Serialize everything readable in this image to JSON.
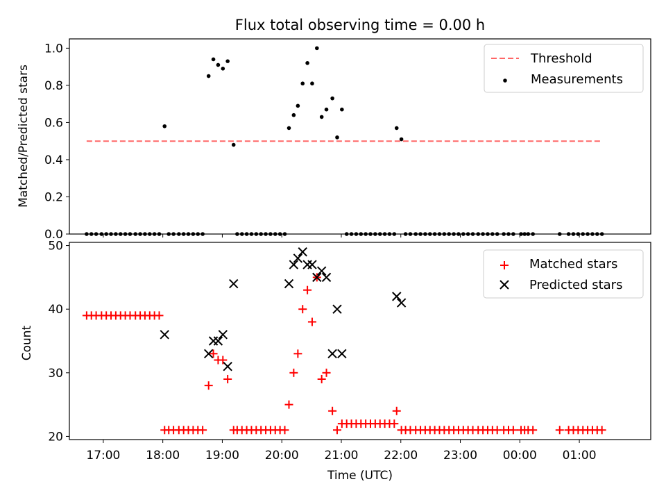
{
  "chart_data": [
    {
      "type": "scatter",
      "title": "Flux total observing time = 0.00 h",
      "xlabel": "",
      "ylabel": "Matched/Predicted stars",
      "xlim": [
        16.43,
        26.2
      ],
      "ylim": [
        0.0,
        1.05
      ],
      "yticks": [
        0.0,
        0.2,
        0.4,
        0.6,
        0.8,
        1.0
      ],
      "ytick_labels": [
        "0.0",
        "0.2",
        "0.4",
        "0.6",
        "0.8",
        "1.0"
      ],
      "legend": {
        "placement": "top-right",
        "entries": [
          {
            "label": "Threshold",
            "style": "dashed-line",
            "color": "#ff6666"
          },
          {
            "label": "Measurements",
            "style": "dot",
            "color": "#000000"
          }
        ]
      },
      "threshold": {
        "name": "Threshold",
        "y": 0.5,
        "x_start": 16.72,
        "x_end": 25.38,
        "color": "#ff6666"
      },
      "series": [
        {
          "name": "Measurements",
          "color": "#000000",
          "points": [
            [
              16.72,
              0
            ],
            [
              16.8,
              0
            ],
            [
              16.88,
              0
            ],
            [
              16.97,
              0
            ],
            [
              17.05,
              0
            ],
            [
              17.13,
              0
            ],
            [
              17.21,
              0
            ],
            [
              17.29,
              0
            ],
            [
              17.37,
              0
            ],
            [
              17.45,
              0
            ],
            [
              17.54,
              0
            ],
            [
              17.62,
              0
            ],
            [
              17.7,
              0
            ],
            [
              17.78,
              0
            ],
            [
              17.86,
              0
            ],
            [
              17.94,
              0
            ],
            [
              18.03,
              0.58
            ],
            [
              18.1,
              0
            ],
            [
              18.18,
              0
            ],
            [
              18.27,
              0
            ],
            [
              18.35,
              0
            ],
            [
              18.43,
              0
            ],
            [
              18.51,
              0
            ],
            [
              18.59,
              0
            ],
            [
              18.67,
              0
            ],
            [
              18.77,
              0.85
            ],
            [
              18.85,
              0.94
            ],
            [
              18.93,
              0.91
            ],
            [
              19.01,
              0.89
            ],
            [
              19.09,
              0.93
            ],
            [
              19.19,
              0.48
            ],
            [
              19.25,
              0
            ],
            [
              19.33,
              0
            ],
            [
              19.41,
              0
            ],
            [
              19.49,
              0
            ],
            [
              19.57,
              0
            ],
            [
              19.65,
              0
            ],
            [
              19.73,
              0
            ],
            [
              19.81,
              0
            ],
            [
              19.89,
              0
            ],
            [
              19.97,
              0
            ],
            [
              20.05,
              0
            ],
            [
              20.12,
              0.57
            ],
            [
              20.2,
              0.64
            ],
            [
              20.27,
              0.69
            ],
            [
              20.35,
              0.81
            ],
            [
              20.43,
              0.92
            ],
            [
              20.51,
              0.81
            ],
            [
              20.59,
              1.0
            ],
            [
              20.67,
              0.63
            ],
            [
              20.75,
              0.67
            ],
            [
              20.85,
              0.73
            ],
            [
              20.93,
              0.52
            ],
            [
              21.01,
              0.67
            ],
            [
              21.09,
              0
            ],
            [
              21.17,
              0
            ],
            [
              21.25,
              0
            ],
            [
              21.33,
              0
            ],
            [
              21.41,
              0
            ],
            [
              21.49,
              0
            ],
            [
              21.57,
              0
            ],
            [
              21.65,
              0
            ],
            [
              21.73,
              0
            ],
            [
              21.81,
              0
            ],
            [
              21.89,
              0
            ],
            [
              21.93,
              0.57
            ],
            [
              22.01,
              0.51
            ],
            [
              22.08,
              0
            ],
            [
              22.16,
              0
            ],
            [
              22.25,
              0
            ],
            [
              22.33,
              0
            ],
            [
              22.41,
              0
            ],
            [
              22.49,
              0
            ],
            [
              22.57,
              0
            ],
            [
              22.65,
              0
            ],
            [
              22.73,
              0
            ],
            [
              22.81,
              0
            ],
            [
              22.89,
              0
            ],
            [
              22.97,
              0
            ],
            [
              23.05,
              0
            ],
            [
              23.13,
              0
            ],
            [
              23.21,
              0
            ],
            [
              23.3,
              0
            ],
            [
              23.38,
              0
            ],
            [
              23.46,
              0
            ],
            [
              23.54,
              0
            ],
            [
              23.62,
              0
            ],
            [
              23.73,
              0
            ],
            [
              23.81,
              0
            ],
            [
              23.89,
              0
            ],
            [
              24.02,
              0
            ],
            [
              24.08,
              0
            ],
            [
              24.14,
              0
            ],
            [
              24.22,
              0
            ],
            [
              24.67,
              0
            ],
            [
              24.82,
              0
            ],
            [
              24.9,
              0
            ],
            [
              24.98,
              0
            ],
            [
              25.06,
              0
            ],
            [
              25.14,
              0
            ],
            [
              25.22,
              0
            ],
            [
              25.3,
              0
            ],
            [
              25.38,
              0
            ]
          ]
        }
      ]
    },
    {
      "type": "scatter",
      "title": "",
      "xlabel": "Time (UTC)",
      "ylabel": "Count",
      "xlim": [
        16.43,
        26.2
      ],
      "ylim": [
        19.5,
        50.5
      ],
      "yticks": [
        20,
        30,
        40,
        50
      ],
      "ytick_labels": [
        "20",
        "30",
        "40",
        "50"
      ],
      "xticks": [
        17,
        18,
        19,
        20,
        21,
        22,
        23,
        24,
        25
      ],
      "xtick_labels": [
        "17:00",
        "18:00",
        "19:00",
        "20:00",
        "21:00",
        "22:00",
        "23:00",
        "00:00",
        "01:00"
      ],
      "legend": {
        "placement": "top-right",
        "entries": [
          {
            "label": "Matched stars",
            "style": "plus",
            "color": "#ff0000"
          },
          {
            "label": "Predicted stars",
            "style": "cross",
            "color": "#000000"
          }
        ]
      },
      "series": [
        {
          "name": "Matched stars",
          "marker": "plus",
          "color": "#ff0000",
          "points": [
            [
              16.72,
              39
            ],
            [
              16.8,
              39
            ],
            [
              16.88,
              39
            ],
            [
              16.97,
              39
            ],
            [
              17.05,
              39
            ],
            [
              17.13,
              39
            ],
            [
              17.21,
              39
            ],
            [
              17.29,
              39
            ],
            [
              17.37,
              39
            ],
            [
              17.45,
              39
            ],
            [
              17.54,
              39
            ],
            [
              17.62,
              39
            ],
            [
              17.7,
              39
            ],
            [
              17.78,
              39
            ],
            [
              17.86,
              39
            ],
            [
              17.94,
              39
            ],
            [
              18.03,
              21
            ],
            [
              18.1,
              21
            ],
            [
              18.18,
              21
            ],
            [
              18.27,
              21
            ],
            [
              18.35,
              21
            ],
            [
              18.43,
              21
            ],
            [
              18.51,
              21
            ],
            [
              18.59,
              21
            ],
            [
              18.67,
              21
            ],
            [
              18.77,
              28
            ],
            [
              18.85,
              33
            ],
            [
              18.93,
              32
            ],
            [
              19.01,
              32
            ],
            [
              19.09,
              29
            ],
            [
              19.19,
              21
            ],
            [
              19.25,
              21
            ],
            [
              19.33,
              21
            ],
            [
              19.41,
              21
            ],
            [
              19.49,
              21
            ],
            [
              19.57,
              21
            ],
            [
              19.65,
              21
            ],
            [
              19.73,
              21
            ],
            [
              19.81,
              21
            ],
            [
              19.89,
              21
            ],
            [
              19.97,
              21
            ],
            [
              20.05,
              21
            ],
            [
              20.12,
              25
            ],
            [
              20.2,
              30
            ],
            [
              20.27,
              33
            ],
            [
              20.35,
              40
            ],
            [
              20.43,
              43
            ],
            [
              20.51,
              38
            ],
            [
              20.59,
              45
            ],
            [
              20.67,
              29
            ],
            [
              20.75,
              30
            ],
            [
              20.85,
              24
            ],
            [
              20.93,
              21
            ],
            [
              21.01,
              22
            ],
            [
              21.09,
              22
            ],
            [
              21.17,
              22
            ],
            [
              21.25,
              22
            ],
            [
              21.33,
              22
            ],
            [
              21.41,
              22
            ],
            [
              21.49,
              22
            ],
            [
              21.57,
              22
            ],
            [
              21.65,
              22
            ],
            [
              21.73,
              22
            ],
            [
              21.81,
              22
            ],
            [
              21.89,
              22
            ],
            [
              21.93,
              24
            ],
            [
              22.01,
              21
            ],
            [
              22.08,
              21
            ],
            [
              22.16,
              21
            ],
            [
              22.25,
              21
            ],
            [
              22.33,
              21
            ],
            [
              22.41,
              21
            ],
            [
              22.49,
              21
            ],
            [
              22.57,
              21
            ],
            [
              22.65,
              21
            ],
            [
              22.73,
              21
            ],
            [
              22.81,
              21
            ],
            [
              22.89,
              21
            ],
            [
              22.97,
              21
            ],
            [
              23.05,
              21
            ],
            [
              23.13,
              21
            ],
            [
              23.21,
              21
            ],
            [
              23.3,
              21
            ],
            [
              23.38,
              21
            ],
            [
              23.46,
              21
            ],
            [
              23.54,
              21
            ],
            [
              23.62,
              21
            ],
            [
              23.73,
              21
            ],
            [
              23.81,
              21
            ],
            [
              23.89,
              21
            ],
            [
              24.02,
              21
            ],
            [
              24.08,
              21
            ],
            [
              24.14,
              21
            ],
            [
              24.22,
              21
            ],
            [
              24.67,
              21
            ],
            [
              24.82,
              21
            ],
            [
              24.9,
              21
            ],
            [
              24.98,
              21
            ],
            [
              25.06,
              21
            ],
            [
              25.14,
              21
            ],
            [
              25.22,
              21
            ],
            [
              25.3,
              21
            ],
            [
              25.38,
              21
            ]
          ]
        },
        {
          "name": "Predicted stars",
          "marker": "cross",
          "color": "#000000",
          "points": [
            [
              18.03,
              36
            ],
            [
              18.77,
              33
            ],
            [
              18.85,
              35
            ],
            [
              18.93,
              35
            ],
            [
              19.01,
              36
            ],
            [
              19.09,
              31
            ],
            [
              19.19,
              44
            ],
            [
              20.12,
              44
            ],
            [
              20.2,
              47
            ],
            [
              20.27,
              48
            ],
            [
              20.35,
              49
            ],
            [
              20.43,
              47
            ],
            [
              20.51,
              47
            ],
            [
              20.59,
              45
            ],
            [
              20.67,
              46
            ],
            [
              20.75,
              45
            ],
            [
              20.85,
              33
            ],
            [
              20.93,
              40
            ],
            [
              21.01,
              33
            ],
            [
              21.93,
              42
            ],
            [
              22.01,
              41
            ]
          ]
        }
      ]
    }
  ]
}
